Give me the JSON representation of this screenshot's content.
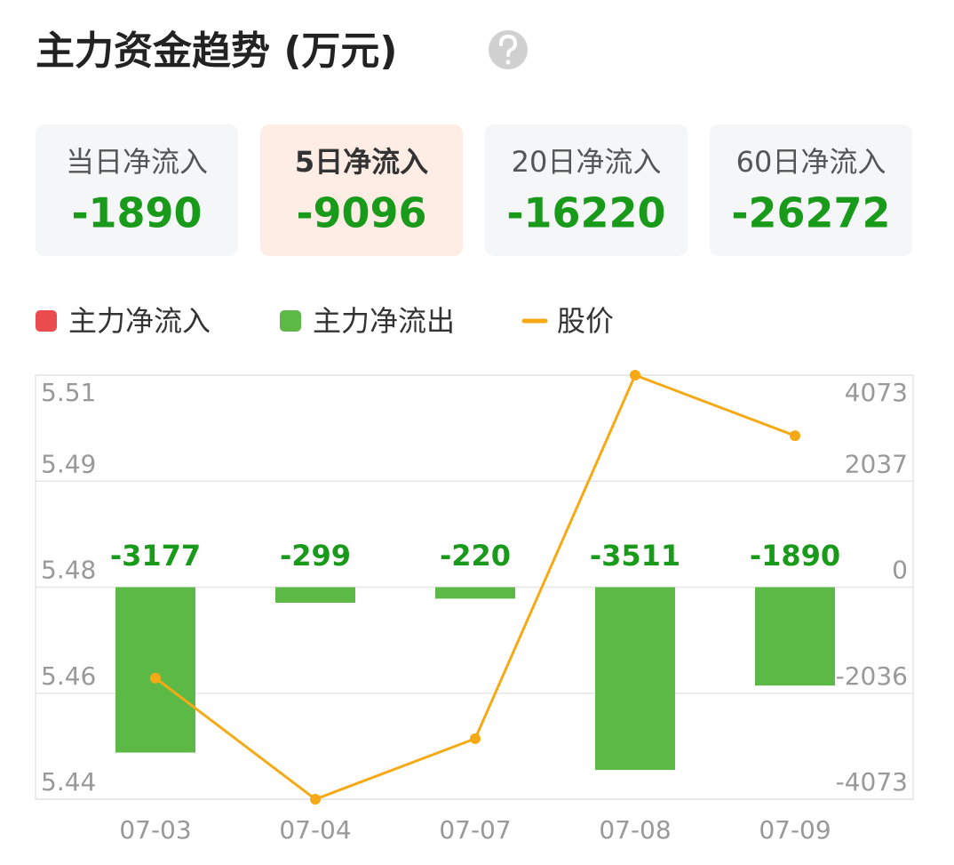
{
  "header": {
    "title": "主力资金趋势 (万元)"
  },
  "cards": {
    "selected": 1,
    "items": [
      {
        "label": "当日净流入",
        "value": -1890
      },
      {
        "label": "5日净流入",
        "value": -9096
      },
      {
        "label": "20日净流入",
        "value": -16220
      },
      {
        "label": "60日净流入",
        "value": -26272
      }
    ]
  },
  "chart_data": {
    "type": "bar-line",
    "categories": [
      "07-03",
      "07-04",
      "07-07",
      "07-08",
      "07-09"
    ],
    "values": [
      -3177,
      -299,
      -220,
      -3511,
      -1890
    ],
    "axis": "y2",
    "series": [
      {
        "name": "主力净流入",
        "color": "#e94b4f"
      },
      {
        "name": "主力净流出",
        "color": "#5cb946"
      },
      {
        "name": "股价",
        "color": "#f5a915",
        "values": [
          5.46,
          5.44,
          5.45,
          5.51,
          5.5
        ]
      }
    ],
    "value_label_color": "#1a9a1a",
    "ylim": [
      5.44,
      5.51
    ],
    "yticks": [
      5.44,
      {
        "value": 5.4575,
        "label": "5.46"
      },
      {
        "value": 5.475,
        "label": "5.48"
      },
      {
        "value": 5.4925,
        "label": "5.49"
      },
      5.51
    ],
    "y2lim": [
      -4073,
      4073
    ],
    "y2ticks": [
      -4073,
      {
        "value": -2036.5,
        "label": "-2036"
      },
      0,
      {
        "value": 2036.5,
        "label": "2037"
      },
      4073
    ],
    "grid": true
  }
}
